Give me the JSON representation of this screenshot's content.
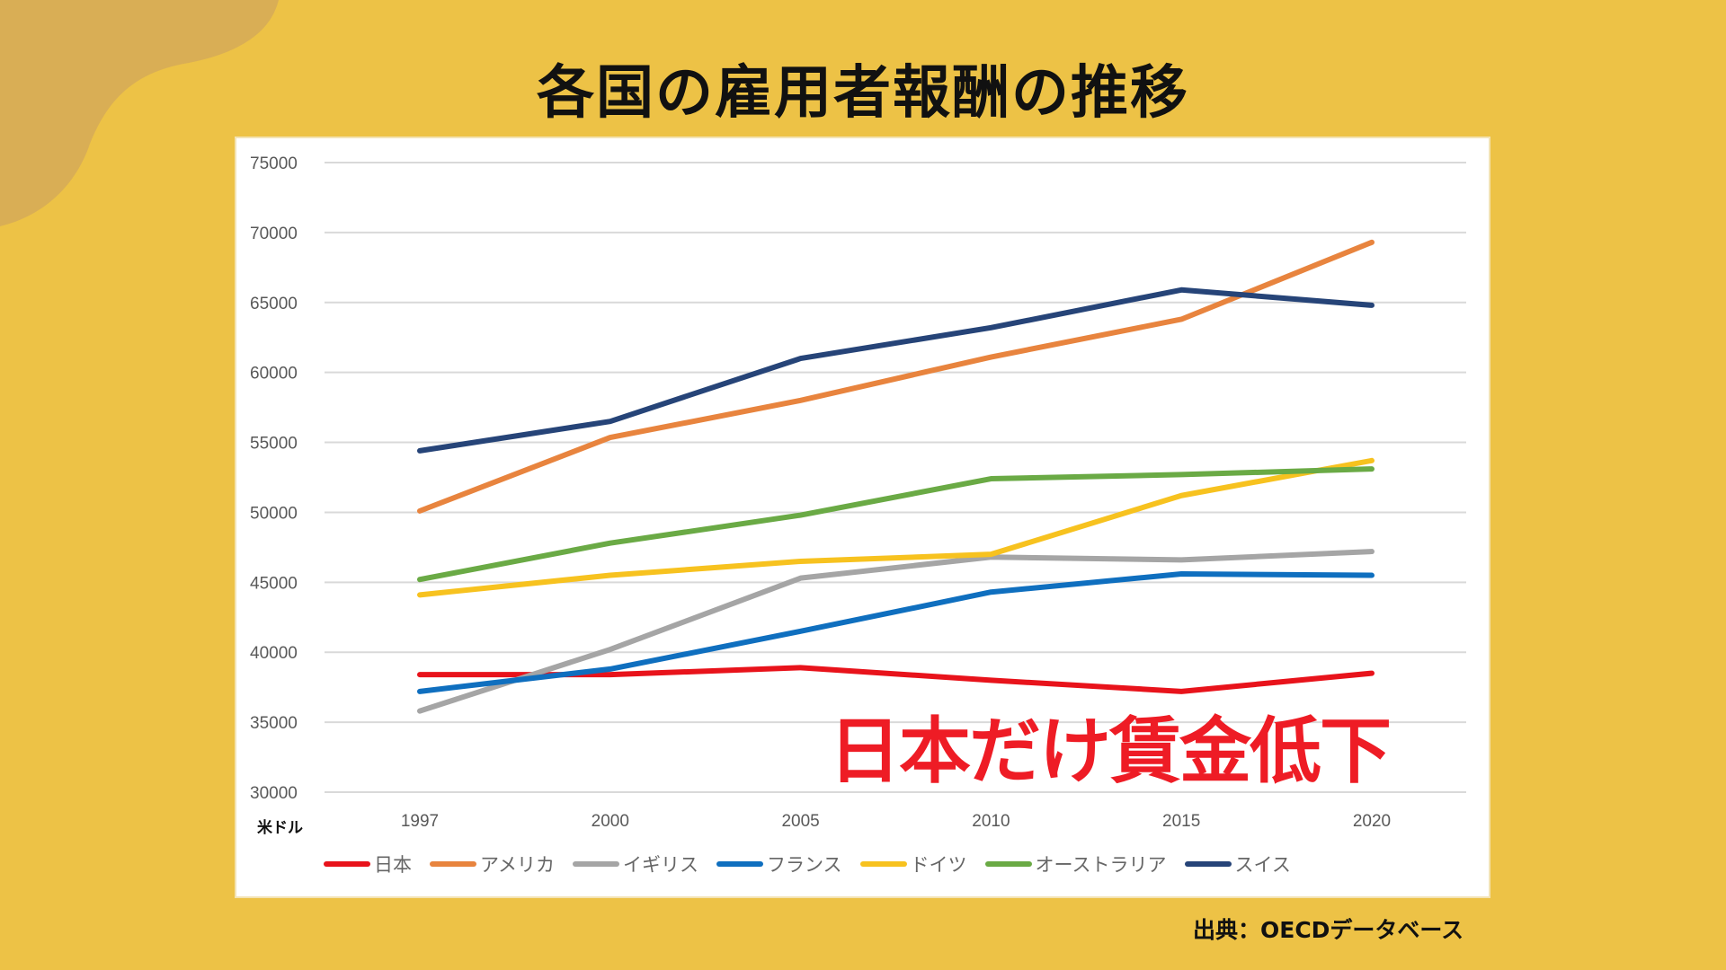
{
  "title": "各国の雇用者報酬の推移",
  "annotation": "日本だけ賃金低下",
  "source": "出典：OECDデータベース",
  "colors": {
    "background": "#EDC246",
    "blob": "#D9AE55",
    "annotation": "#EE1C25"
  },
  "chart_data": {
    "type": "line",
    "title": "",
    "xlabel": "",
    "ylabel": "米ドル",
    "x": [
      "1997",
      "2000",
      "2005",
      "2010",
      "2015",
      "2020"
    ],
    "ylim": [
      30000,
      75000
    ],
    "yticks": [
      "30000",
      "35000",
      "40000",
      "45000",
      "50000",
      "55000",
      "60000",
      "65000",
      "70000",
      "75000"
    ],
    "grid": true,
    "legend": "bottom",
    "series": [
      {
        "name": "日本",
        "color": "#E8131B",
        "values": [
          38400,
          38400,
          38900,
          38000,
          37200,
          38500
        ]
      },
      {
        "name": "アメリカ",
        "color": "#E8843E",
        "values": [
          50100,
          55350,
          58000,
          61100,
          63800,
          69300
        ]
      },
      {
        "name": "イギリス",
        "color": "#A5A5A5",
        "values": [
          35800,
          40200,
          45300,
          46800,
          46600,
          47200
        ]
      },
      {
        "name": "フランス",
        "color": "#0F6FBF",
        "values": [
          37200,
          38800,
          41500,
          44300,
          45600,
          45500
        ]
      },
      {
        "name": "ドイツ",
        "color": "#F7C21F",
        "values": [
          44100,
          45500,
          46500,
          47000,
          51200,
          53700
        ]
      },
      {
        "name": "オーストラリア",
        "color": "#6AAA45",
        "values": [
          45200,
          47800,
          49800,
          52400,
          52700,
          53100
        ]
      },
      {
        "name": "スイス",
        "color": "#264478",
        "values": [
          54400,
          56500,
          61000,
          63200,
          65900,
          64800
        ]
      }
    ]
  }
}
